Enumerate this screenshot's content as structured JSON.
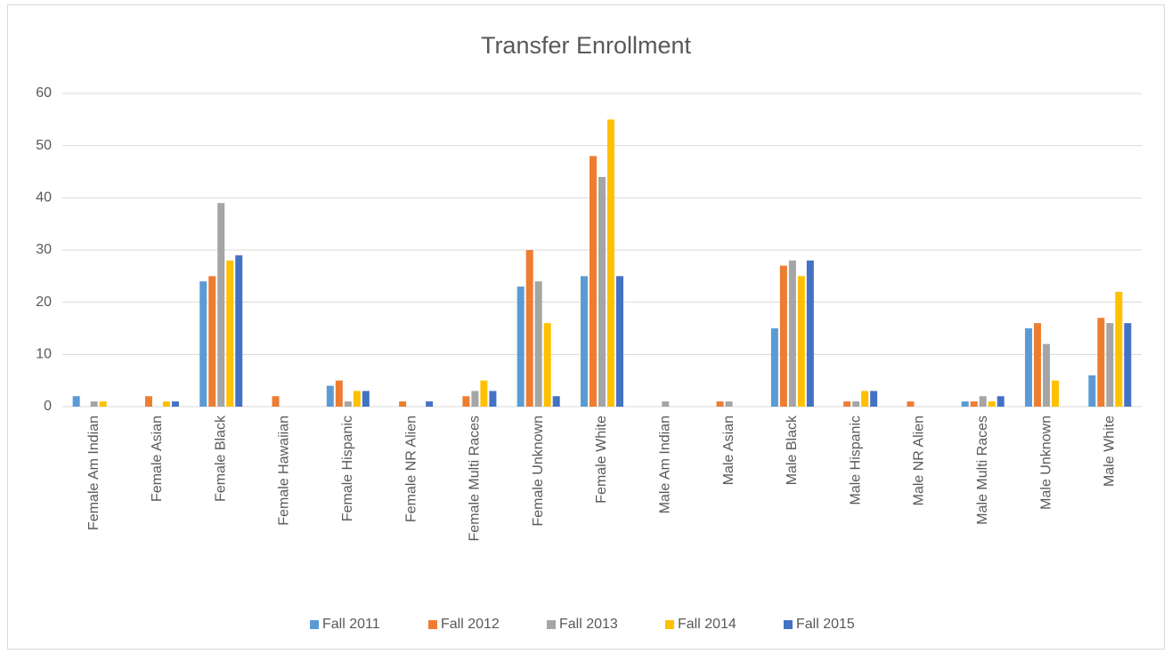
{
  "chart_data": {
    "type": "bar",
    "title": "Transfer Enrollment",
    "categories": [
      "Female Am Indian",
      "Female Asian",
      "Female Black",
      "Female Hawaiian",
      "Female Hispanic",
      "Female NR Alien",
      "Female Multi Races",
      "Female Unknown",
      "Female White",
      "Male Am Indian",
      "Male Asian",
      "Male Black",
      "Male Hispanic",
      "Male NR Alien",
      "Male Multi Races",
      "Male Unknown",
      "Male White"
    ],
    "series": [
      {
        "name": "Fall 2011",
        "color": "#5b9bd5",
        "values": [
          2,
          0,
          24,
          0,
          4,
          0,
          0,
          23,
          25,
          0,
          0,
          15,
          0,
          0,
          1,
          15,
          6
        ]
      },
      {
        "name": "Fall 2012",
        "color": "#ed7d31",
        "values": [
          0,
          2,
          25,
          2,
          5,
          1,
          2,
          30,
          48,
          0,
          1,
          27,
          1,
          1,
          1,
          16,
          17
        ]
      },
      {
        "name": "Fall 2013",
        "color": "#a5a5a5",
        "values": [
          1,
          0,
          39,
          0,
          1,
          0,
          3,
          24,
          44,
          1,
          1,
          28,
          1,
          0,
          2,
          12,
          16
        ]
      },
      {
        "name": "Fall 2014",
        "color": "#ffc000",
        "values": [
          1,
          1,
          28,
          0,
          3,
          0,
          5,
          16,
          55,
          0,
          0,
          25,
          3,
          0,
          1,
          5,
          22
        ]
      },
      {
        "name": "Fall 2015",
        "color": "#4472c4",
        "values": [
          0,
          1,
          29,
          0,
          3,
          1,
          3,
          2,
          25,
          0,
          0,
          28,
          3,
          0,
          2,
          0,
          16
        ]
      }
    ],
    "ylim": [
      0,
      60
    ],
    "yticks": [
      0,
      10,
      20,
      30,
      40,
      50,
      60
    ],
    "grid": true,
    "legend": "bottom"
  }
}
